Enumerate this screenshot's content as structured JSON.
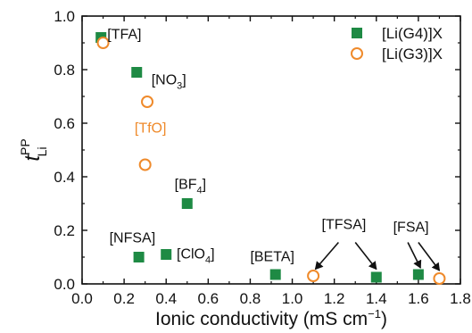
{
  "chart_data": {
    "type": "scatter",
    "xlabel": "Ionic conductivity (mS cm",
    "xlabel_sup": "−1",
    "xlabel_close": ")",
    "ylabel_main": "t",
    "ylabel_sup": "PP",
    "ylabel_sub": "Li",
    "xlim": [
      0.0,
      1.8
    ],
    "ylim": [
      0.0,
      1.0
    ],
    "xticks": [
      "0.0",
      "0.2",
      "0.4",
      "0.6",
      "0.8",
      "1.0",
      "1.2",
      "1.4",
      "1.6",
      "1.8"
    ],
    "yticks": [
      "0.0",
      "0.2",
      "0.4",
      "0.6",
      "0.8",
      "1.0"
    ],
    "grid": false,
    "legend_position": "top-right",
    "colors": {
      "series_g4": "#1e8a44",
      "series_g3": "#ef8a2b",
      "axis": "#111111"
    },
    "series": [
      {
        "name": "[Li(G4)]X",
        "marker": "filled-square",
        "points": [
          {
            "x": 0.09,
            "y": 0.92
          },
          {
            "x": 0.26,
            "y": 0.79
          },
          {
            "x": 0.5,
            "y": 0.3
          },
          {
            "x": 0.27,
            "y": 0.1
          },
          {
            "x": 0.4,
            "y": 0.11
          },
          {
            "x": 0.92,
            "y": 0.035
          },
          {
            "x": 1.4,
            "y": 0.025
          },
          {
            "x": 1.6,
            "y": 0.035
          }
        ]
      },
      {
        "name": "[Li(G3)]X",
        "marker": "open-circle",
        "points": [
          {
            "x": 0.1,
            "y": 0.9
          },
          {
            "x": 0.31,
            "y": 0.68
          },
          {
            "x": 0.3,
            "y": 0.445
          },
          {
            "x": 1.1,
            "y": 0.03
          },
          {
            "x": 1.7,
            "y": 0.02
          }
        ]
      }
    ],
    "annotations": [
      {
        "id": "tfa",
        "text": "[TFA]",
        "x": 0.12,
        "y": 0.915,
        "color": "#111111"
      },
      {
        "id": "no3",
        "text": "[NO",
        "sub": "3",
        "tail": "]",
        "x": 0.33,
        "y": 0.745,
        "color": "#111111"
      },
      {
        "id": "tfo",
        "text": "[TfO]",
        "x": 0.25,
        "y": 0.565,
        "color": "#ef8a2b"
      },
      {
        "id": "bf4",
        "text": "[BF",
        "sub": "4",
        "tail": "]",
        "x": 0.44,
        "y": 0.355,
        "color": "#111111"
      },
      {
        "id": "nfsa",
        "text": "[NFSA]",
        "x": 0.13,
        "y": 0.155,
        "color": "#111111"
      },
      {
        "id": "clo4",
        "text": "[ClO",
        "sub": "4",
        "tail": "]",
        "x": 0.45,
        "y": 0.095,
        "color": "#111111"
      },
      {
        "id": "beta",
        "text": "[BETA]",
        "x": 0.8,
        "y": 0.085,
        "color": "#111111"
      },
      {
        "id": "tfsa",
        "text": "[TFSA]",
        "x": 1.14,
        "y": 0.205,
        "color": "#111111"
      },
      {
        "id": "fsa",
        "text": "[FSA]",
        "x": 1.48,
        "y": 0.195,
        "color": "#111111"
      }
    ],
    "arrows": [
      {
        "id": "tfsa-left",
        "from": [
          1.22,
          0.155
        ],
        "to": [
          1.11,
          0.055
        ]
      },
      {
        "id": "tfsa-right",
        "from": [
          1.3,
          0.155
        ],
        "to": [
          1.4,
          0.055
        ]
      },
      {
        "id": "fsa-left",
        "from": [
          1.55,
          0.155
        ],
        "to": [
          1.61,
          0.06
        ]
      },
      {
        "id": "fsa-right",
        "from": [
          1.6,
          0.155
        ],
        "to": [
          1.7,
          0.05
        ]
      }
    ]
  }
}
